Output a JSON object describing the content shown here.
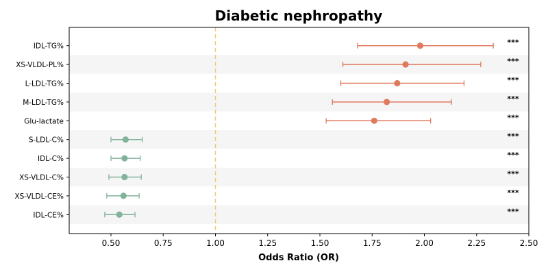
{
  "chart_data": {
    "type": "forest",
    "title": "Diabetic nephropathy",
    "xlabel": "Odds Ratio (OR)",
    "xlim": [
      0.3,
      2.5
    ],
    "xticks": [
      "0.50",
      "0.75",
      "1.00",
      "1.25",
      "1.50",
      "1.75",
      "2.00",
      "2.25",
      "2.50"
    ],
    "reference_line": 1.0,
    "colors": {
      "risk": "#e07a5f",
      "protective": "#81b29a",
      "reference": "#f2c879",
      "band": "#f5f5f5"
    },
    "rows": [
      {
        "label": "IDL-TG%",
        "or": 1.98,
        "lo": 1.68,
        "hi": 2.33,
        "sig": "***",
        "group": "risk"
      },
      {
        "label": "XS-VLDL-PL%",
        "or": 1.91,
        "lo": 1.61,
        "hi": 2.27,
        "sig": "***",
        "group": "risk"
      },
      {
        "label": "L-LDL-TG%",
        "or": 1.87,
        "lo": 1.6,
        "hi": 2.19,
        "sig": "***",
        "group": "risk"
      },
      {
        "label": "M-LDL-TG%",
        "or": 1.82,
        "lo": 1.56,
        "hi": 2.13,
        "sig": "***",
        "group": "risk"
      },
      {
        "label": "Glu-lactate",
        "or": 1.76,
        "lo": 1.53,
        "hi": 2.03,
        "sig": "***",
        "group": "risk"
      },
      {
        "label": "S-LDL-C%",
        "or": 0.57,
        "lo": 0.5,
        "hi": 0.65,
        "sig": "***",
        "group": "protective"
      },
      {
        "label": "IDL-C%",
        "or": 0.565,
        "lo": 0.5,
        "hi": 0.64,
        "sig": "***",
        "group": "protective"
      },
      {
        "label": "XS-VLDL-C%",
        "or": 0.565,
        "lo": 0.49,
        "hi": 0.645,
        "sig": "***",
        "group": "protective"
      },
      {
        "label": "XS-VLDL-CE%",
        "or": 0.56,
        "lo": 0.48,
        "hi": 0.635,
        "sig": "***",
        "group": "protective"
      },
      {
        "label": "IDL-CE%",
        "or": 0.54,
        "lo": 0.47,
        "hi": 0.615,
        "sig": "***",
        "group": "protective"
      }
    ]
  }
}
